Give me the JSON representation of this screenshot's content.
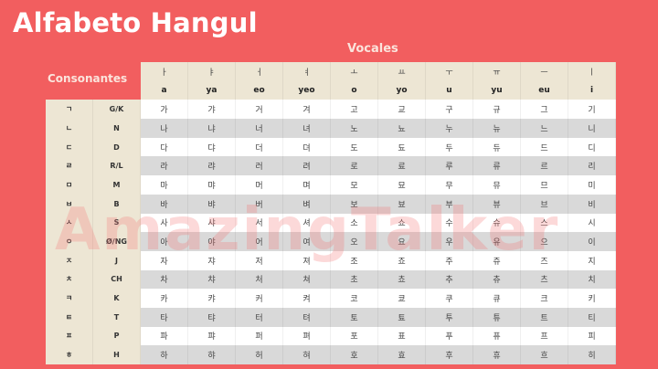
{
  "title": "Alfabeto Hangul",
  "vowels_label": "Vocales",
  "consonants_label": "Consonantes",
  "watermark": "AmazingTalker",
  "colors": {
    "background": "#f25e5f",
    "header": "#ede6d4",
    "row_alt": "#d9d9d9"
  },
  "vowels": [
    {
      "jamo": "ㅏ",
      "roman": "a"
    },
    {
      "jamo": "ㅑ",
      "roman": "ya"
    },
    {
      "jamo": "ㅓ",
      "roman": "eo"
    },
    {
      "jamo": "ㅕ",
      "roman": "yeo"
    },
    {
      "jamo": "ㅗ",
      "roman": "o"
    },
    {
      "jamo": "ㅛ",
      "roman": "yo"
    },
    {
      "jamo": "ㅜ",
      "roman": "u"
    },
    {
      "jamo": "ㅠ",
      "roman": "yu"
    },
    {
      "jamo": "ㅡ",
      "roman": "eu"
    },
    {
      "jamo": "ㅣ",
      "roman": "i"
    }
  ],
  "rows": [
    {
      "jamo": "ㄱ",
      "roman": "G/K",
      "syllables": [
        "가",
        "갸",
        "거",
        "겨",
        "고",
        "교",
        "구",
        "규",
        "그",
        "기"
      ]
    },
    {
      "jamo": "ㄴ",
      "roman": "N",
      "syllables": [
        "나",
        "냐",
        "너",
        "녀",
        "노",
        "뇨",
        "누",
        "뉴",
        "느",
        "니"
      ]
    },
    {
      "jamo": "ㄷ",
      "roman": "D",
      "syllables": [
        "다",
        "댜",
        "더",
        "뎌",
        "도",
        "됴",
        "두",
        "듀",
        "드",
        "디"
      ]
    },
    {
      "jamo": "ㄹ",
      "roman": "R/L",
      "syllables": [
        "라",
        "랴",
        "러",
        "려",
        "로",
        "료",
        "루",
        "류",
        "르",
        "리"
      ]
    },
    {
      "jamo": "ㅁ",
      "roman": "M",
      "syllables": [
        "마",
        "먀",
        "머",
        "며",
        "모",
        "묘",
        "무",
        "뮤",
        "므",
        "미"
      ]
    },
    {
      "jamo": "ㅂ",
      "roman": "B",
      "syllables": [
        "바",
        "뱌",
        "버",
        "벼",
        "보",
        "뵤",
        "부",
        "뷰",
        "브",
        "비"
      ]
    },
    {
      "jamo": "ㅅ",
      "roman": "S",
      "syllables": [
        "사",
        "샤",
        "서",
        "셔",
        "소",
        "쇼",
        "수",
        "슈",
        "스",
        "시"
      ]
    },
    {
      "jamo": "ㅇ",
      "roman": "Ø/NG",
      "syllables": [
        "아",
        "야",
        "어",
        "여",
        "오",
        "요",
        "우",
        "유",
        "으",
        "이"
      ]
    },
    {
      "jamo": "ㅈ",
      "roman": "J",
      "syllables": [
        "자",
        "쟈",
        "저",
        "져",
        "조",
        "죠",
        "주",
        "쥬",
        "즈",
        "지"
      ]
    },
    {
      "jamo": "ㅊ",
      "roman": "CH",
      "syllables": [
        "차",
        "챠",
        "처",
        "쳐",
        "초",
        "쵸",
        "추",
        "츄",
        "츠",
        "치"
      ]
    },
    {
      "jamo": "ㅋ",
      "roman": "K",
      "syllables": [
        "카",
        "캬",
        "커",
        "켜",
        "코",
        "쿄",
        "쿠",
        "큐",
        "크",
        "키"
      ]
    },
    {
      "jamo": "ㅌ",
      "roman": "T",
      "syllables": [
        "타",
        "탸",
        "터",
        "텨",
        "토",
        "툐",
        "투",
        "튜",
        "트",
        "티"
      ]
    },
    {
      "jamo": "ㅍ",
      "roman": "P",
      "syllables": [
        "파",
        "퍄",
        "퍼",
        "펴",
        "포",
        "표",
        "푸",
        "퓨",
        "프",
        "피"
      ]
    },
    {
      "jamo": "ㅎ",
      "roman": "H",
      "syllables": [
        "하",
        "햐",
        "허",
        "혀",
        "호",
        "효",
        "후",
        "휴",
        "흐",
        "히"
      ]
    }
  ]
}
